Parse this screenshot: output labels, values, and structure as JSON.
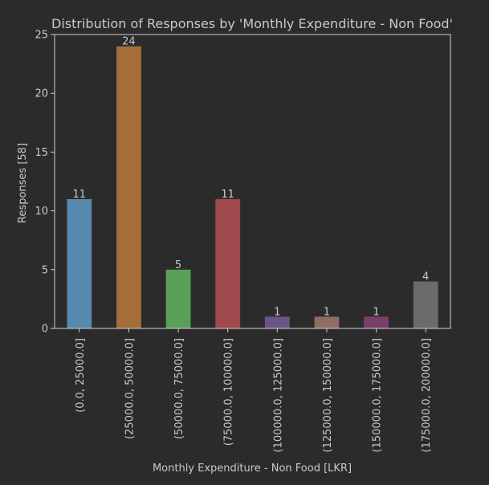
{
  "chart_data": {
    "type": "bar",
    "title": "Distribution of Responses by 'Monthly Expenditure - Non Food'",
    "xlabel": "Monthly Expenditure - Non Food [LKR]",
    "ylabel": "Responses [58]",
    "ylim": [
      0,
      25
    ],
    "yticks": [
      0,
      5,
      10,
      15,
      20,
      25
    ],
    "grid": false,
    "categories": [
      "(0.0, 25000.0]",
      "(25000.0, 50000.0]",
      "(50000.0, 75000.0]",
      "(75000.0, 100000.0]",
      "(100000.0, 125000.0]",
      "(125000.0, 150000.0]",
      "(150000.0, 175000.0]",
      "(175000.0, 200000.0]"
    ],
    "values": [
      11,
      24,
      5,
      11,
      1,
      1,
      1,
      4
    ],
    "colors": [
      "#5789ae",
      "#a46d39",
      "#5a9f58",
      "#a04a4d",
      "#6b5487",
      "#8f6c66",
      "#7a3f68",
      "#6b6b6b"
    ]
  },
  "colors": {
    "background": "#2b2b2b",
    "text": "#c9c9c9",
    "axes": "#d0d0d0"
  }
}
